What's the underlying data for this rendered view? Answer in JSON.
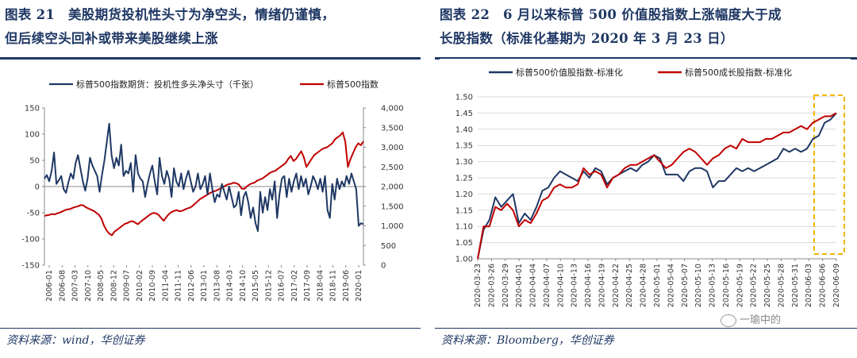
{
  "left": {
    "title": "图表 21　美股期货投机性头寸为净空头，情绪仍谨慎，但后续空头回补或带来美股继续上涨",
    "title_line1": "图表 21　美股期货投机性头寸为净空头，情绪仍谨慎，",
    "title_line2": "但后续空头回补或带来美股继续上涨",
    "source": "资料来源：wind，华创证券"
  },
  "right": {
    "title_line1": "图表 22　6 月以来标普 500 价值股指数上涨幅度大于成",
    "title_line2": "长股指数（标准化基期为 2020 年 3 月 23 日）",
    "source": "资料来源：Bloomberg，华创证券",
    "watermark": "一瑜中的"
  },
  "chart_data": [
    {
      "type": "line",
      "title": "",
      "colors": {
        "positions": "#1f3864",
        "sp500": "#c00000"
      },
      "legend_position": "top",
      "y_left": {
        "min": -150,
        "max": 150,
        "ticks": [
          -150,
          -100,
          -50,
          0,
          50,
          100,
          150
        ]
      },
      "y_right": {
        "min": 0,
        "max": 4000,
        "ticks": [
          "0",
          "500",
          "1,000",
          "1,500",
          "2,000",
          "2,500",
          "3,000",
          "3,500",
          "4,000"
        ]
      },
      "x_ticks": [
        "2006-01",
        "2006-08",
        "2007-03",
        "2007-10",
        "2008-05",
        "2008-12",
        "2009-07",
        "2010-02",
        "2010-09",
        "2011-04",
        "2011-11",
        "2012-06",
        "2013-01",
        "2013-08",
        "2014-03",
        "2014-10",
        "2015-05",
        "2015-12",
        "2016-07",
        "2017-02",
        "2017-09",
        "2018-04",
        "2018-11",
        "2019-06",
        "2020-01"
      ],
      "series": [
        {
          "name": "标普500指数期货：投机性多头净头寸（千张）",
          "axis": "left",
          "values": [
            15,
            22,
            10,
            30,
            65,
            5,
            12,
            20,
            -5,
            -12,
            8,
            25,
            15,
            45,
            60,
            35,
            10,
            -8,
            15,
            55,
            40,
            30,
            20,
            -10,
            22,
            50,
            85,
            120,
            60,
            35,
            55,
            40,
            80,
            20,
            30,
            25,
            45,
            -10,
            60,
            25,
            15,
            10,
            -20,
            5,
            25,
            40,
            10,
            -15,
            55,
            20,
            5,
            30,
            15,
            -20,
            35,
            10,
            0,
            25,
            -5,
            15,
            30,
            10,
            -10,
            0,
            25,
            -5,
            5,
            20,
            -15,
            25,
            -5,
            -30,
            -15,
            -20,
            5,
            -10,
            -25,
            0,
            -20,
            -40,
            -35,
            -10,
            -55,
            -20,
            -10,
            -30,
            -60,
            -40,
            -70,
            -85,
            -10,
            -50,
            -20,
            -45,
            -5,
            -25,
            10,
            -60,
            -15,
            15,
            20,
            -20,
            15,
            -10,
            10,
            25,
            -5,
            20,
            0,
            15,
            -15,
            0,
            20,
            10,
            -5,
            15,
            -10,
            20,
            -45,
            -60,
            5,
            -25,
            15,
            -5,
            10,
            0,
            20,
            5,
            25,
            10,
            -5,
            -75,
            -70,
            -72
          ]
        },
        {
          "name": "标普500指数",
          "axis": "right",
          "values": [
            1250,
            1270,
            1280,
            1300,
            1290,
            1320,
            1340,
            1370,
            1400,
            1420,
            1430,
            1460,
            1480,
            1500,
            1530,
            1520,
            1470,
            1440,
            1410,
            1380,
            1330,
            1280,
            1180,
            1000,
            880,
            800,
            760,
            850,
            900,
            950,
            1000,
            1050,
            1070,
            1110,
            1120,
            1080,
            1040,
            1100,
            1150,
            1200,
            1250,
            1300,
            1330,
            1320,
            1280,
            1200,
            1130,
            1220,
            1300,
            1350,
            1380,
            1400,
            1370,
            1380,
            1410,
            1440,
            1460,
            1500,
            1560,
            1620,
            1680,
            1720,
            1760,
            1800,
            1840,
            1870,
            1890,
            1920,
            1960,
            1990,
            2030,
            2060,
            2070,
            2100,
            2080,
            2050,
            1950,
            1940,
            2000,
            2050,
            2080,
            2100,
            2150,
            2180,
            2200,
            2250,
            2300,
            2350,
            2380,
            2400,
            2450,
            2500,
            2550,
            2600,
            2700,
            2780,
            2650,
            2700,
            2800,
            2900,
            2750,
            2500,
            2600,
            2700,
            2800,
            2850,
            2900,
            2950,
            2980,
            3000,
            3050,
            3100,
            3200,
            3250,
            3300,
            3380,
            3150,
            2500,
            2700,
            2850,
            3000,
            3100,
            3050,
            3150
          ]
        }
      ]
    },
    {
      "type": "line",
      "title": "",
      "colors": {
        "value": "#1f3864",
        "growth": "#c00000",
        "highlight": "#f2b600"
      },
      "legend_position": "top",
      "y": {
        "min": 1.0,
        "max": 1.5,
        "ticks": [
          "1.00",
          "1.05",
          "1.10",
          "1.15",
          "1.20",
          "1.25",
          "1.30",
          "1.35",
          "1.40",
          "1.45",
          "1.50"
        ]
      },
      "x_ticks": [
        "2020-03-23",
        "2020-03-26",
        "2020-03-29",
        "2020-04-01",
        "2020-04-04",
        "2020-04-07",
        "2020-04-10",
        "2020-04-13",
        "2020-04-16",
        "2020-04-19",
        "2020-04-22",
        "2020-04-25",
        "2020-04-28",
        "2020-05-01",
        "2020-05-04",
        "2020-05-07",
        "2020-05-10",
        "2020-05-13",
        "2020-05-16",
        "2020-05-19",
        "2020-05-22",
        "2020-05-25",
        "2020-05-28",
        "2020-05-31",
        "2020-06-03",
        "2020-06-06",
        "2020-06-09"
      ],
      "series": [
        {
          "name": "标普500价值股指数-标准化",
          "values": [
            1.0,
            1.09,
            1.12,
            1.19,
            1.16,
            1.18,
            1.2,
            1.11,
            1.14,
            1.12,
            1.16,
            1.21,
            1.22,
            1.25,
            1.27,
            1.26,
            1.25,
            1.24,
            1.27,
            1.25,
            1.28,
            1.27,
            1.23,
            1.25,
            1.26,
            1.27,
            1.28,
            1.27,
            1.29,
            1.3,
            1.32,
            1.31,
            1.26,
            1.26,
            1.26,
            1.24,
            1.27,
            1.28,
            1.28,
            1.27,
            1.22,
            1.24,
            1.24,
            1.26,
            1.28,
            1.27,
            1.28,
            1.27,
            1.28,
            1.29,
            1.3,
            1.31,
            1.34,
            1.33,
            1.34,
            1.33,
            1.34,
            1.37,
            1.38,
            1.42,
            1.43,
            1.45
          ]
        },
        {
          "name": "标普500成长股指数-标准化",
          "values": [
            1.0,
            1.1,
            1.1,
            1.16,
            1.15,
            1.17,
            1.15,
            1.1,
            1.12,
            1.11,
            1.14,
            1.18,
            1.19,
            1.22,
            1.23,
            1.22,
            1.22,
            1.23,
            1.28,
            1.26,
            1.27,
            1.26,
            1.22,
            1.25,
            1.26,
            1.28,
            1.29,
            1.29,
            1.3,
            1.31,
            1.32,
            1.3,
            1.28,
            1.29,
            1.31,
            1.33,
            1.34,
            1.33,
            1.31,
            1.29,
            1.31,
            1.32,
            1.34,
            1.35,
            1.34,
            1.37,
            1.36,
            1.36,
            1.36,
            1.37,
            1.37,
            1.38,
            1.39,
            1.39,
            1.4,
            1.41,
            1.4,
            1.42,
            1.43,
            1.44,
            1.44,
            1.45
          ]
        }
      ]
    }
  ]
}
